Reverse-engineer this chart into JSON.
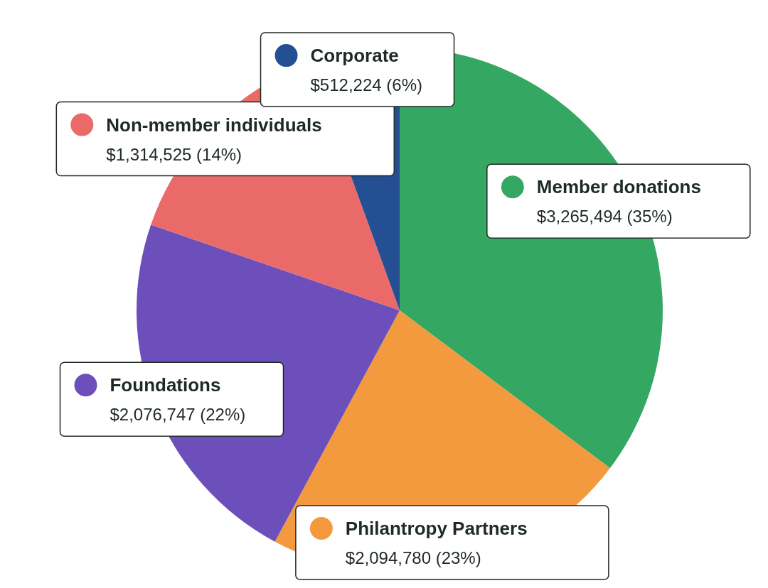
{
  "chart_data": {
    "type": "pie",
    "categories": [
      "Member donations",
      "Philantropy Partners",
      "Foundations",
      "Non-member individuals",
      "Corporate"
    ],
    "values": [
      3265494,
      2094780,
      2076747,
      1314525,
      512224
    ],
    "value_labels": [
      "$3,265,494 (35%)",
      "$2,094,780 (23%)",
      "$2,076,747 (22%)",
      "$1,314,525 (14%)",
      "$512,224 (6%)"
    ],
    "colors": [
      "#34a862",
      "#f3993e",
      "#6c4fbb",
      "#ea6a6a",
      "#244f93"
    ],
    "legend": "right"
  }
}
